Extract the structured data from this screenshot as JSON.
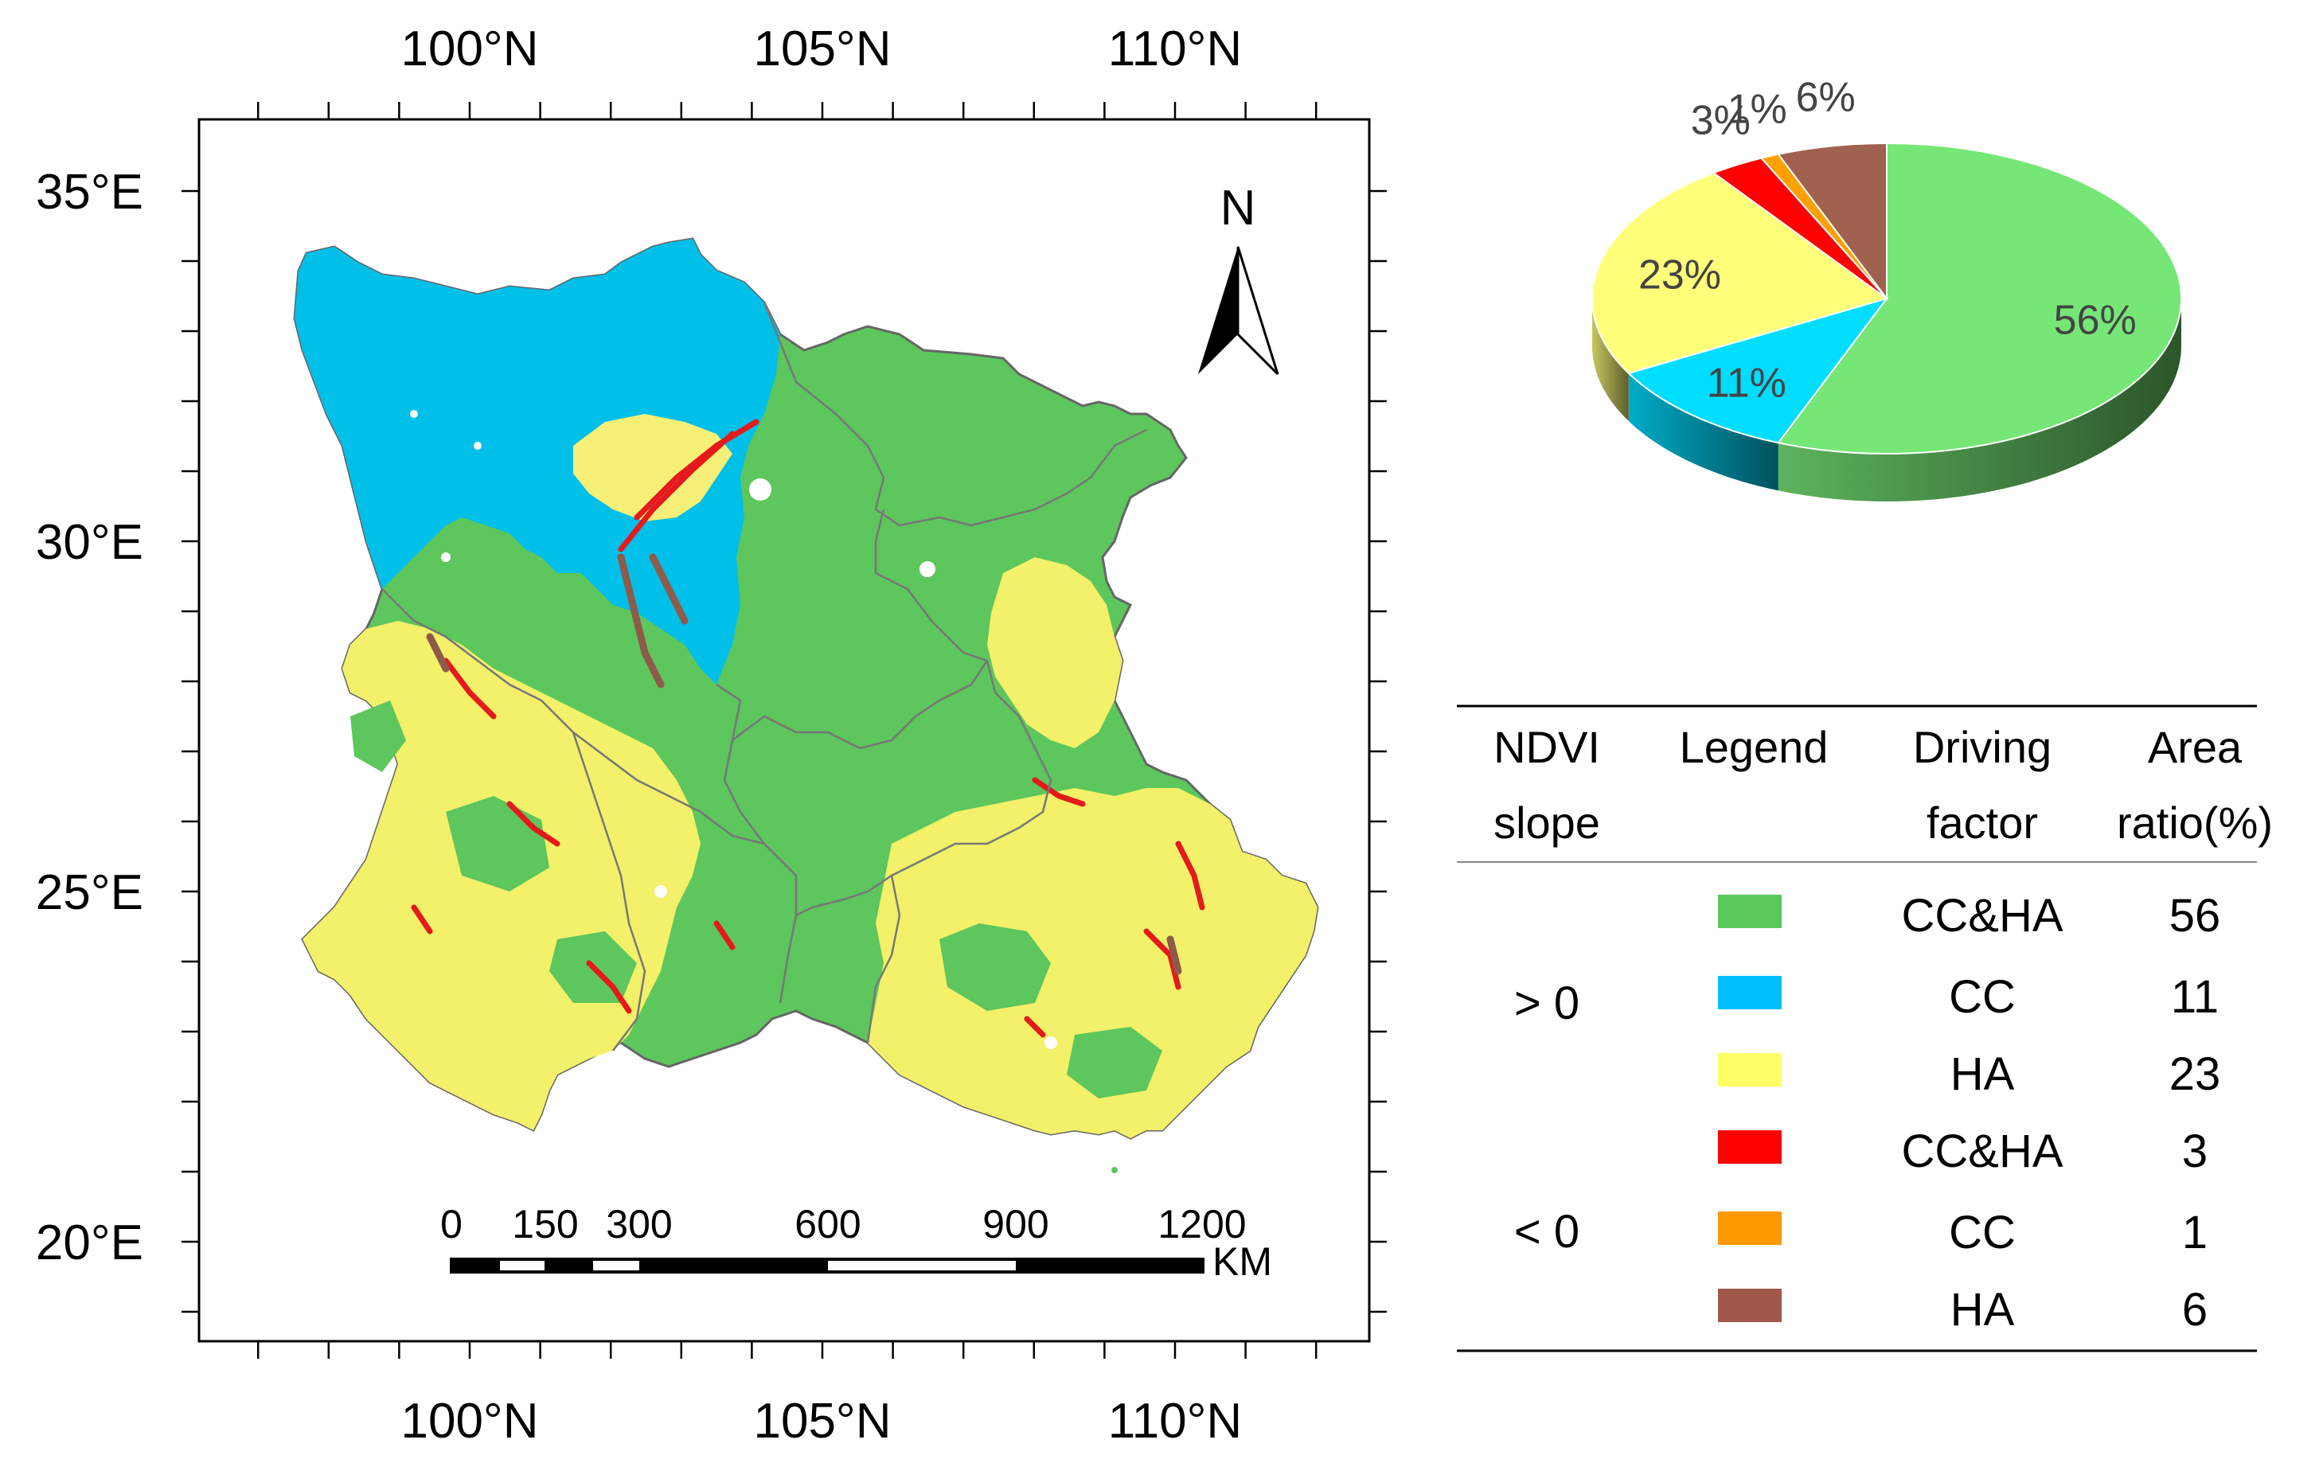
{
  "map": {
    "top_ticks": [
      "100°N",
      "105°N",
      "110°N"
    ],
    "bottom_ticks": [
      "100°N",
      "105°N",
      "110°N"
    ],
    "left_ticks": [
      "35°E",
      "30°E",
      "25°E",
      "20°E"
    ],
    "north_label": "N",
    "scale_labels": [
      "0",
      "150",
      "300",
      "600",
      "900",
      "1200"
    ],
    "scale_unit": "KM"
  },
  "chart_data": {
    "type": "pie",
    "title": "",
    "slices": [
      {
        "label": "56%",
        "value": 56,
        "color": "#76E676"
      },
      {
        "label": "11%",
        "value": 11,
        "color": "#00DDFF"
      },
      {
        "label": "23%",
        "value": 23,
        "color": "#FFFF7A"
      },
      {
        "label": "3%",
        "value": 3,
        "color": "#FF0000"
      },
      {
        "label": "1%",
        "value": 1,
        "color": "#FFA000"
      },
      {
        "label": "6%",
        "value": 6,
        "color": "#A0614E"
      }
    ]
  },
  "legend_table": {
    "headers": [
      {
        "line1": "NDVI",
        "line2": "slope"
      },
      {
        "line1": "Legend",
        "line2": ""
      },
      {
        "line1": "Driving",
        "line2": "factor"
      },
      {
        "line1": "Area",
        "line2": "ratio(%)"
      }
    ],
    "groups": [
      {
        "slope": "> 0",
        "rows": [
          {
            "color": "#5BC85B",
            "factor": "CC&HA",
            "ratio": "56"
          },
          {
            "color": "#00BFFF",
            "factor": "CC",
            "ratio": "11"
          },
          {
            "color": "#FFFF66",
            "factor": "HA",
            "ratio": "23"
          }
        ]
      },
      {
        "slope": "< 0",
        "rows": [
          {
            "color": "#FF0000",
            "factor": "CC&HA",
            "ratio": "3"
          },
          {
            "color": "#FF9900",
            "factor": "CC",
            "ratio": "1"
          },
          {
            "color": "#A0584A",
            "factor": "HA",
            "ratio": "6"
          }
        ]
      }
    ]
  }
}
